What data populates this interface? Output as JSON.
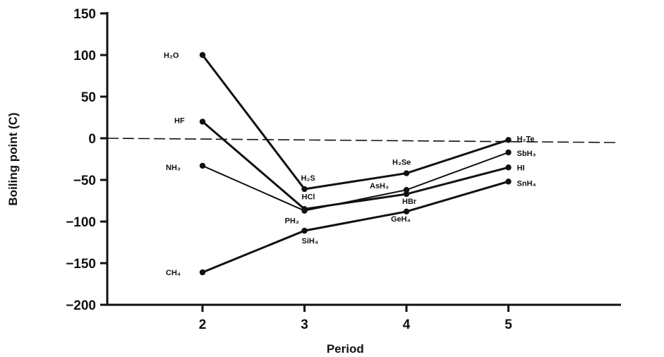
{
  "chart_data": {
    "type": "line",
    "title": "",
    "xlabel": "Period",
    "ylabel": "Boiling point (C)",
    "x": [
      2,
      3,
      4,
      5
    ],
    "xticks": [
      "2",
      "3",
      "4",
      "5"
    ],
    "ylim": [
      -200,
      150
    ],
    "yticks": [
      "150",
      "100",
      "50",
      "0",
      "−50",
      "−100",
      "−150",
      "−200"
    ],
    "ytick_values": [
      150,
      100,
      50,
      0,
      -50,
      -100,
      -150,
      -200
    ],
    "grid": false,
    "legend": "none",
    "reference_line": 0,
    "series": [
      {
        "style": "solid",
        "points": [
          {
            "x": 2,
            "y": 100,
            "label": "H₂O"
          },
          {
            "x": 3,
            "y": -61,
            "label": "H₂S"
          },
          {
            "x": 4,
            "y": -42,
            "label": "H₂Se"
          },
          {
            "x": 5,
            "y": -2,
            "label": "H₂Te"
          }
        ]
      },
      {
        "style": "solid",
        "points": [
          {
            "x": 2,
            "y": 20,
            "label": "HF"
          },
          {
            "x": 3,
            "y": -85,
            "label": "HCl"
          },
          {
            "x": 4,
            "y": -67,
            "label": "HBr"
          },
          {
            "x": 5,
            "y": -35,
            "label": "HI"
          }
        ]
      },
      {
        "style": "thin",
        "points": [
          {
            "x": 2,
            "y": -33,
            "label": "NH₃"
          },
          {
            "x": 3,
            "y": -87,
            "label": "PH₃"
          },
          {
            "x": 4,
            "y": -62,
            "label": "AsH₃"
          },
          {
            "x": 5,
            "y": -17,
            "label": "SbH₃"
          }
        ]
      },
      {
        "style": "solid",
        "points": [
          {
            "x": 2,
            "y": -161,
            "label": "CH₄"
          },
          {
            "x": 3,
            "y": -111,
            "label": "SiH₄"
          },
          {
            "x": 4,
            "y": -88,
            "label": "GeH₄"
          },
          {
            "x": 5,
            "y": -52,
            "label": "SnH₄"
          }
        ]
      }
    ]
  }
}
